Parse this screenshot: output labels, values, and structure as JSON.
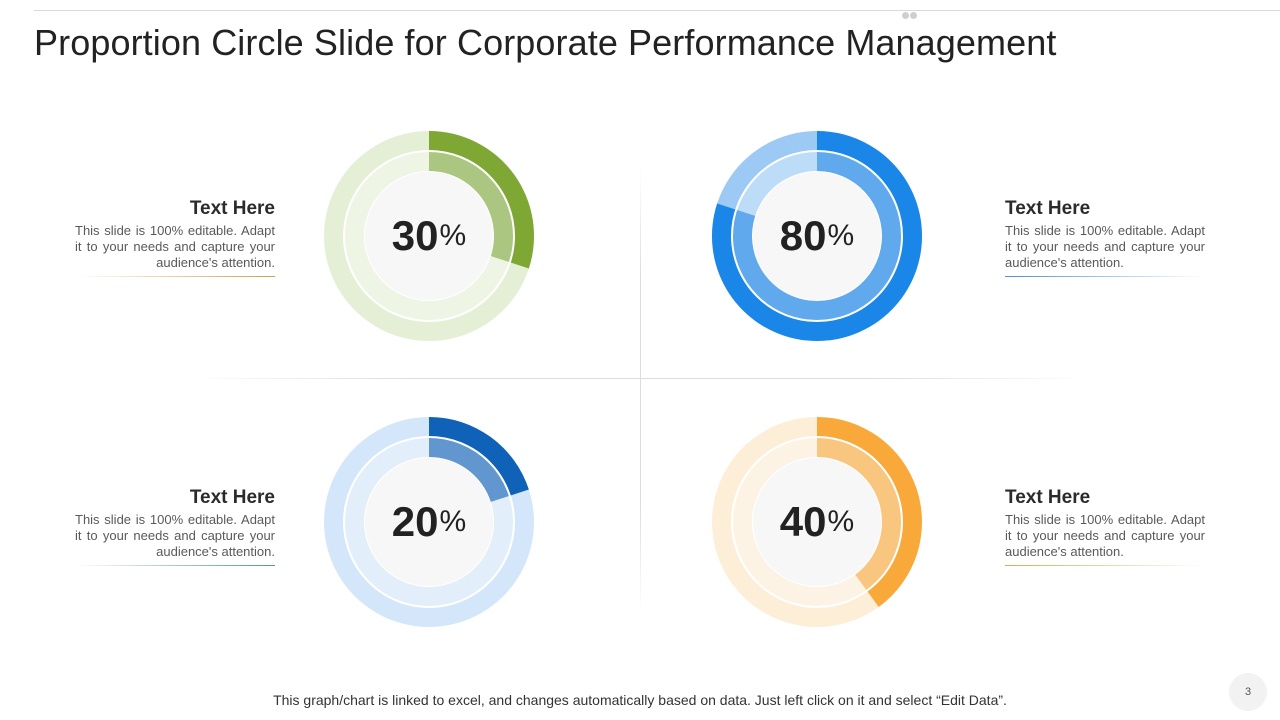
{
  "slide": {
    "title": "Proportion Circle Slide for Corporate Performance Management",
    "footer": "This graph/chart is linked to excel, and changes automatically based on data. Just left click on it and select “Edit Data”.",
    "page_number": "3"
  },
  "chart_data": [
    {
      "type": "pie",
      "values": [
        30,
        70
      ],
      "value_label": "30",
      "unit": "%",
      "colors": {
        "accent": "#7ea833",
        "inner": "#aac680",
        "light": "#e4efd5",
        "inner_light": "#eef5e5"
      }
    },
    {
      "type": "pie",
      "values": [
        80,
        20
      ],
      "value_label": "80",
      "unit": "%",
      "colors": {
        "accent": "#1a87e8",
        "inner": "#5fa9ec",
        "light": "#9ccaf4",
        "inner_light": "#bddcf7"
      }
    },
    {
      "type": "pie",
      "values": [
        20,
        80
      ],
      "value_label": "20",
      "unit": "%",
      "colors": {
        "accent": "#0f62b8",
        "inner": "#6196cf",
        "light": "#d4e6f9",
        "inner_light": "#e2eefa"
      }
    },
    {
      "type": "pie",
      "values": [
        40,
        60
      ],
      "value_label": "40",
      "unit": "%",
      "colors": {
        "accent": "#f8a93a",
        "inner": "#f8c67e",
        "light": "#fdeed7",
        "inner_light": "#fdf3e4"
      }
    }
  ],
  "blocks": [
    {
      "title": "Text Here",
      "description": "This slide is 100% editable. Adapt it to your needs and capture your audience's attention.",
      "line_color": "#c9a24a"
    },
    {
      "title": "Text Here",
      "description": "This slide is 100% editable. Adapt it to your needs and capture your audience's attention.",
      "line_color": "#4b8fd0"
    },
    {
      "title": "Text Here",
      "description": "This slide is 100% editable. Adapt it to your needs and capture your audience's attention.",
      "line_color": "#4b8fd0"
    },
    {
      "title": "Text Here",
      "description": "This slide is 100% editable. Adapt it to your needs and capture your audience's attention.",
      "line_color": "#e0a850"
    }
  ]
}
